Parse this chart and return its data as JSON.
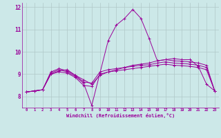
{
  "background_color": "#cce8e8",
  "grid_color": "#b0c8c8",
  "line_color": "#990099",
  "xlabel": "Windchill (Refroidissement éolien,°C)",
  "xlim": [
    -0.5,
    23.5
  ],
  "ylim": [
    7.5,
    12.2
  ],
  "yticks": [
    8,
    9,
    10,
    11,
    12
  ],
  "xticks": [
    0,
    1,
    2,
    3,
    4,
    5,
    6,
    7,
    8,
    9,
    10,
    11,
    12,
    13,
    14,
    15,
    16,
    17,
    18,
    19,
    20,
    21,
    22,
    23
  ],
  "series": [
    [
      8.2,
      8.25,
      8.3,
      9.0,
      9.1,
      9.05,
      8.85,
      8.5,
      8.45,
      9.0,
      9.1,
      9.15,
      9.2,
      9.25,
      9.3,
      9.35,
      9.4,
      9.45,
      9.4,
      9.38,
      9.35,
      9.3,
      9.2,
      8.25
    ],
    [
      8.2,
      8.25,
      8.3,
      9.0,
      9.15,
      9.2,
      8.95,
      8.75,
      8.55,
      8.95,
      9.1,
      9.2,
      9.3,
      9.35,
      9.4,
      9.42,
      9.5,
      9.55,
      9.5,
      9.48,
      9.45,
      9.4,
      9.3,
      8.25
    ],
    [
      8.2,
      8.25,
      8.3,
      9.05,
      9.2,
      9.1,
      8.9,
      8.6,
      7.6,
      9.05,
      10.5,
      11.2,
      11.5,
      11.9,
      11.5,
      10.6,
      9.6,
      9.65,
      9.7,
      9.65,
      9.65,
      9.35,
      8.55,
      8.25
    ],
    [
      8.2,
      8.25,
      8.3,
      9.1,
      9.25,
      9.15,
      8.95,
      8.65,
      8.6,
      9.1,
      9.2,
      9.25,
      9.3,
      9.4,
      9.45,
      9.5,
      9.6,
      9.65,
      9.6,
      9.58,
      9.55,
      9.5,
      9.4,
      8.25
    ]
  ]
}
